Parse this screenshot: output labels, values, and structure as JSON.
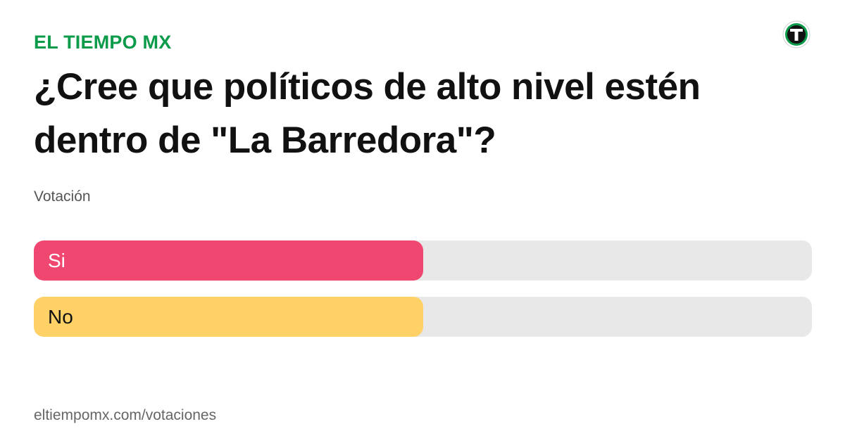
{
  "header": {
    "brand": "EL TIEMPO MX",
    "logo_icon": "el-tiempo-logo-icon",
    "brand_color": "#0b9b4a"
  },
  "poll": {
    "question": "¿Cree que políticos de alto nivel estén dentro de \"La Barredora\"?",
    "subtitle": "Votación",
    "options": [
      {
        "label": "Si",
        "share": 0.5,
        "color": "#ef476f",
        "text_color": "#ffffff"
      },
      {
        "label": "No",
        "share": 0.5,
        "color": "#ffd166",
        "text_color": "#111111"
      }
    ],
    "track_color": "#e8e8e8"
  },
  "footer": {
    "url": "eltiempomx.com/votaciones"
  }
}
